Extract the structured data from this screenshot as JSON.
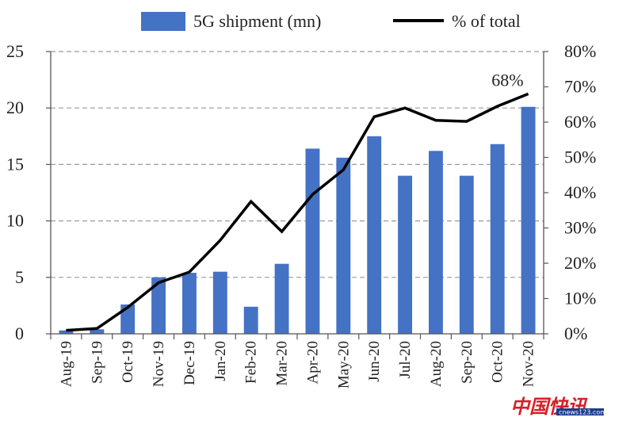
{
  "chart_data": {
    "type": "bar",
    "categories": [
      "Aug-19",
      "Sep-19",
      "Oct-19",
      "Nov-19",
      "Dec-19",
      "Jan-20",
      "Feb-20",
      "Mar-20",
      "Apr-20",
      "May-20",
      "Jun-20",
      "Jul-20",
      "Aug-20",
      "Sep-20",
      "Oct-20",
      "Nov-20"
    ],
    "series": [
      {
        "name": "5G shipment (mn)",
        "type": "bar",
        "axis": "left",
        "color": "#4472c4",
        "values": [
          0.3,
          0.4,
          2.6,
          5.0,
          5.4,
          5.5,
          2.4,
          6.2,
          16.4,
          15.6,
          17.5,
          14.0,
          16.2,
          14.0,
          16.8,
          20.1
        ]
      },
      {
        "name": "% of total",
        "type": "line",
        "axis": "right",
        "color": "#000000",
        "values": [
          1,
          1.5,
          7.5,
          14.5,
          17.5,
          26.5,
          37.5,
          29,
          39.5,
          46.5,
          61.5,
          64,
          60.5,
          60.2,
          64.5,
          68
        ]
      }
    ],
    "y_left": {
      "min": 0,
      "max": 25,
      "ticks": [
        0,
        5,
        10,
        15,
        20,
        25
      ]
    },
    "y_right": {
      "min": 0,
      "max": 80,
      "ticks": [
        "0%",
        "10%",
        "20%",
        "30%",
        "40%",
        "50%",
        "60%",
        "70%",
        "80%"
      ]
    },
    "annotations": [
      {
        "text": "68%",
        "series": 1,
        "index": 15
      }
    ],
    "grid": "horizontal-dashed",
    "legend": "top"
  },
  "watermark": {
    "text": "中国快讯",
    "subtext": "cnews123.com"
  }
}
